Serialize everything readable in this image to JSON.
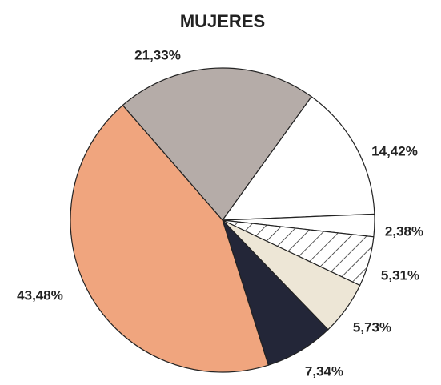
{
  "chart_data": {
    "type": "pie",
    "title": "MUJERES",
    "values": [
      21.33,
      14.42,
      2.38,
      5.31,
      5.73,
      7.34,
      43.48
    ],
    "value_labels": [
      "21,33%",
      "14,42%",
      "2,38%",
      "5,31%",
      "5,73%",
      "7,34%",
      "43,48%"
    ],
    "colors": [
      "#b5aca8",
      "#ffffff",
      "#ffffff",
      "#ffffff",
      "#ede6d6",
      "#232638",
      "#f0a57e"
    ],
    "hatched": [
      false,
      false,
      false,
      true,
      false,
      false,
      false
    ]
  }
}
